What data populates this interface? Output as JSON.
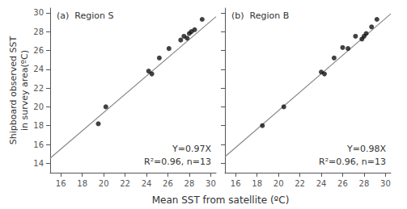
{
  "chart_data": [
    {
      "type": "scatter",
      "title": "(a)  Region S",
      "x_label": "Mean SST from satellite (ºC)",
      "y_label": "Shipboard observed SST\nin survey area(ºC)",
      "annotations": [
        "Y=0.97X",
        "R²=0.96, n=13"
      ],
      "xlim": [
        15.0,
        30.5
      ],
      "ylim": [
        13.0,
        30.5
      ],
      "xticks": [
        16,
        18,
        20,
        22,
        24,
        26,
        28,
        30
      ],
      "yticks": [
        14,
        16,
        18,
        20,
        22,
        24,
        26,
        28,
        30
      ],
      "grid": false,
      "series": [
        {
          "type": "scatter",
          "marker": "circle",
          "color": "#111111",
          "x": [
            19.5,
            20.2,
            24.2,
            24.5,
            25.2,
            26.1,
            27.2,
            27.5,
            27.8,
            28.0,
            28.2,
            28.5,
            29.2
          ],
          "values": [
            18.2,
            20.0,
            23.8,
            23.5,
            25.2,
            26.2,
            27.1,
            27.5,
            27.3,
            27.8,
            28.0,
            28.2,
            29.3
          ]
        },
        {
          "type": "line",
          "line_style": "solid",
          "color": "#888888",
          "x": [
            15.0,
            30.5
          ],
          "values": [
            14.55,
            29.585
          ]
        }
      ]
    },
    {
      "type": "scatter",
      "title": "(b)  Region B",
      "annotations": [
        "Y=0.98X",
        "R²=0.96, n=13"
      ],
      "xlim": [
        15.0,
        30.5
      ],
      "ylim": [
        13.0,
        30.5
      ],
      "xticks": [
        16,
        18,
        20,
        22,
        24,
        26,
        28,
        30
      ],
      "yticks": [
        14,
        16,
        18,
        20,
        22,
        24,
        26,
        28,
        30
      ],
      "grid": false,
      "tick_labels": "x",
      "series": [
        {
          "type": "scatter",
          "marker": "circle",
          "color": "#111111",
          "x": [
            18.5,
            20.5,
            24.0,
            24.3,
            25.2,
            26.0,
            26.5,
            27.2,
            27.8,
            28.0,
            28.2,
            28.7,
            29.2
          ],
          "values": [
            18.0,
            20.0,
            23.7,
            23.5,
            25.2,
            26.3,
            26.2,
            27.5,
            27.2,
            27.5,
            27.8,
            28.5,
            29.3
          ]
        },
        {
          "type": "line",
          "line_style": "solid",
          "color": "#888888",
          "x": [
            15.0,
            30.5
          ],
          "values": [
            14.7,
            29.89
          ]
        }
      ]
    }
  ]
}
